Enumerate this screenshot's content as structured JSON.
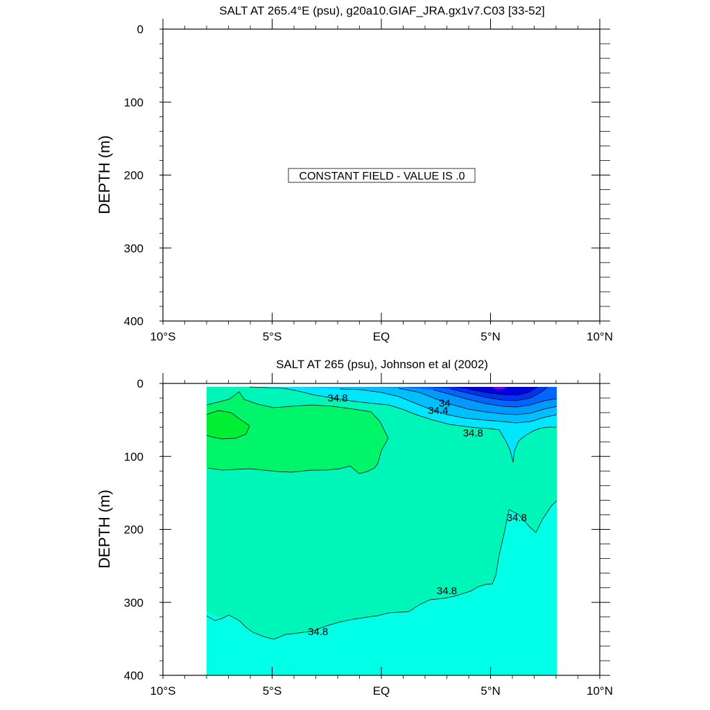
{
  "chart_data": [
    {
      "type": "heatmap",
      "title": "SALT AT 265.4°E (psu), g20a10.GIAF_JRA.gx1v7.C03 [33-52]",
      "ylabel": "DEPTH (m)",
      "xlabel": "",
      "xlim": [
        -10,
        10
      ],
      "ylim": [
        400,
        0
      ],
      "x_ticks": [
        -10,
        -5,
        0,
        5,
        10
      ],
      "x_tick_labels": [
        "10°S",
        "5°S",
        "EQ",
        "5°N",
        "10°N"
      ],
      "y_ticks": [
        0,
        100,
        200,
        300,
        400
      ],
      "y_tick_labels": [
        "0",
        "100",
        "200",
        "300",
        "400"
      ],
      "annotation": "CONSTANT FIELD - VALUE IS .0"
    },
    {
      "type": "heatmap",
      "title": "SALT AT 265 (psu), Johnson et al (2002)",
      "ylabel": "DEPTH (m)",
      "xlabel": "",
      "xlim": [
        -10,
        10
      ],
      "ylim": [
        400,
        0
      ],
      "x_ticks": [
        -10,
        -5,
        0,
        5,
        10
      ],
      "x_tick_labels": [
        "10°S",
        "5°S",
        "EQ",
        "5°N",
        "10°N"
      ],
      "y_ticks": [
        0,
        100,
        200,
        300,
        400
      ],
      "y_tick_labels": [
        "0",
        "100",
        "200",
        "300",
        "400"
      ],
      "data_extent": {
        "x": [
          -8,
          8
        ],
        "depth": [
          5,
          400
        ]
      },
      "contour_labels": [
        {
          "text": "34.8",
          "x": -2.0,
          "depth": 20
        },
        {
          "text": "34",
          "x": 2.9,
          "depth": 27
        },
        {
          "text": "34.4",
          "x": 2.6,
          "depth": 37
        },
        {
          "text": "34.8",
          "x": 4.2,
          "depth": 68
        },
        {
          "text": "34.8",
          "x": 6.2,
          "depth": 184
        },
        {
          "text": "34.8",
          "x": 3.0,
          "depth": 284
        },
        {
          "text": "34.8",
          "x": -2.9,
          "depth": 340
        }
      ]
    }
  ],
  "colors": {
    "deep_cyan": "#00ffe6",
    "mid_aqua": "#00f5b8",
    "green_high": "#00f56a",
    "green_max": "#00ee33",
    "fresh_1": "#00e6ff",
    "fresh_2": "#00bfff",
    "fresh_3": "#0099ff",
    "fresh_4": "#0066ff",
    "fresh_5": "#0033ee",
    "fresh_6": "#0000dd",
    "fresh_7": "#7700ee"
  }
}
